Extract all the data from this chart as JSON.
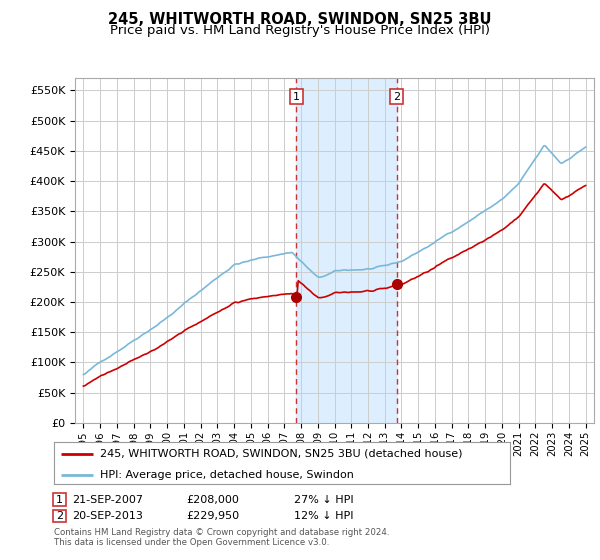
{
  "title": "245, WHITWORTH ROAD, SWINDON, SN25 3BU",
  "subtitle": "Price paid vs. HM Land Registry's House Price Index (HPI)",
  "ylim": [
    0,
    570000
  ],
  "yticks": [
    0,
    50000,
    100000,
    150000,
    200000,
    250000,
    300000,
    350000,
    400000,
    450000,
    500000,
    550000
  ],
  "ytick_labels": [
    "£0",
    "£50K",
    "£100K",
    "£150K",
    "£200K",
    "£250K",
    "£300K",
    "£350K",
    "£400K",
    "£450K",
    "£500K",
    "£550K"
  ],
  "hpi_color": "#7ab8d9",
  "price_color": "#cc0000",
  "marker_color": "#aa0000",
  "highlight_bg": "#ddeeff",
  "grid_color": "#cccccc",
  "background_color": "#ffffff",
  "sale1_year": 2007.72,
  "sale1_price": 208000,
  "sale2_year": 2013.72,
  "sale2_price": 229950,
  "legend_line1": "245, WHITWORTH ROAD, SWINDON, SN25 3BU (detached house)",
  "legend_line2": "HPI: Average price, detached house, Swindon",
  "ann1_date": "21-SEP-2007",
  "ann1_price": "£208,000",
  "ann1_pct": "27% ↓ HPI",
  "ann2_date": "20-SEP-2013",
  "ann2_price": "£229,950",
  "ann2_pct": "12% ↓ HPI",
  "footer": "Contains HM Land Registry data © Crown copyright and database right 2024.\nThis data is licensed under the Open Government Licence v3.0.",
  "title_fontsize": 10.5,
  "subtitle_fontsize": 9.5
}
